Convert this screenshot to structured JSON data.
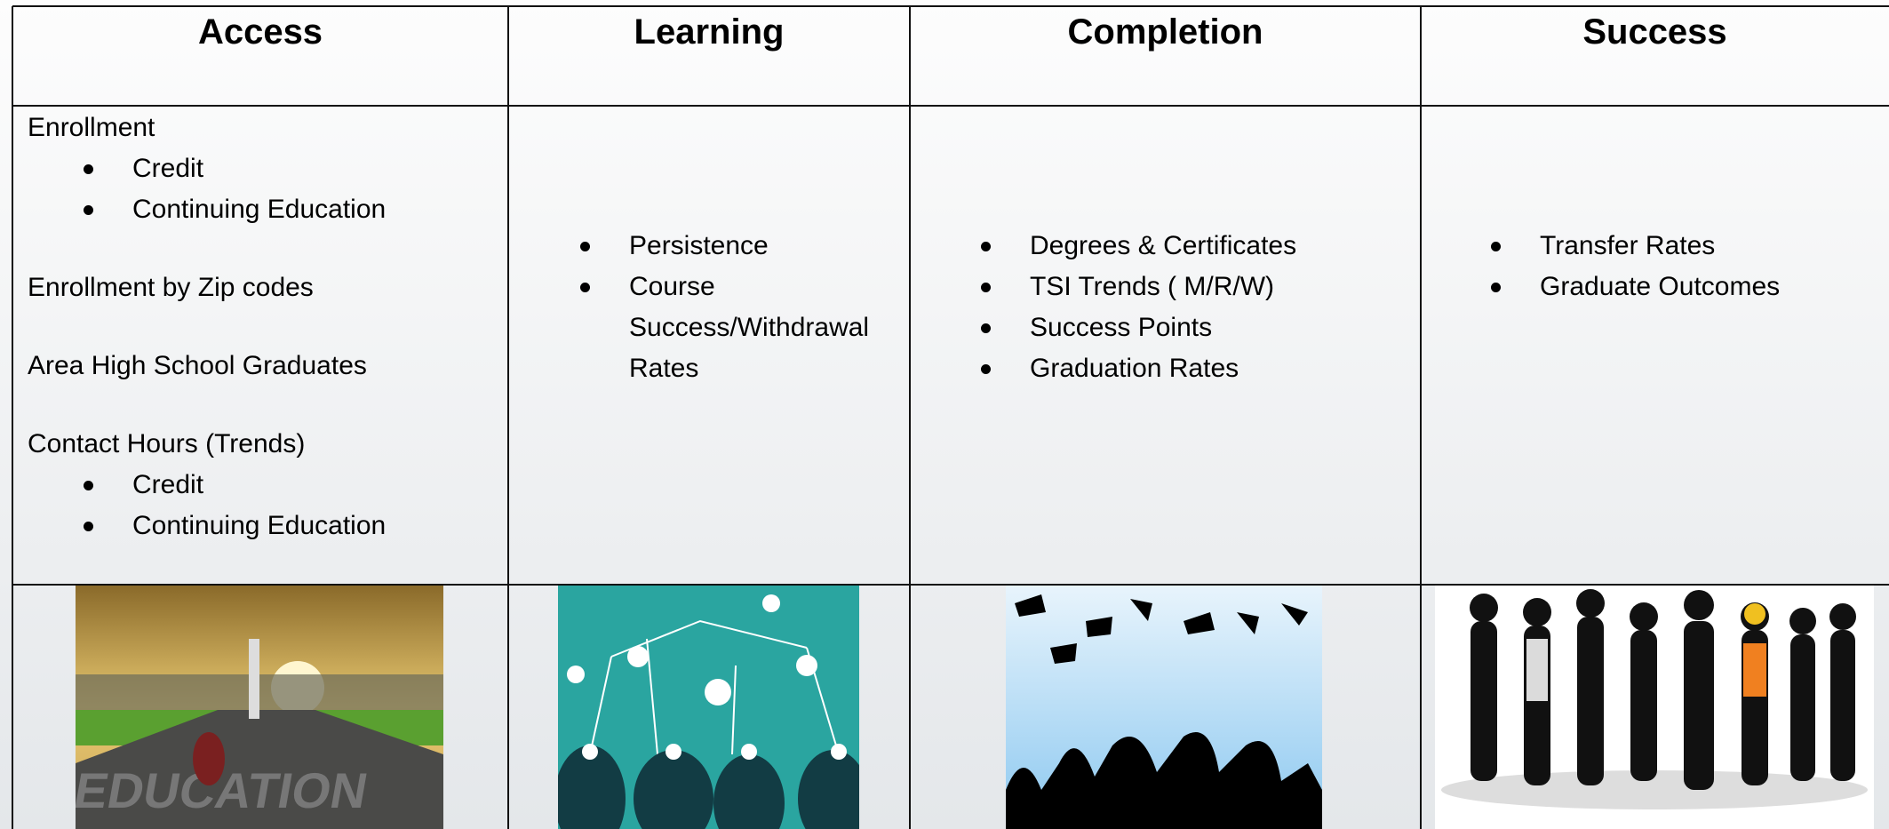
{
  "table": {
    "headers": [
      "Access",
      "Learning",
      "Completion",
      "Success"
    ],
    "access": [
      {
        "label": "Enrollment",
        "bullets": [
          "Credit",
          "Continuing Education"
        ]
      },
      {
        "label": "Enrollment by Zip codes"
      },
      {
        "label": "Area High School Graduates"
      },
      {
        "label": "Contact Hours (Trends)",
        "bullets": [
          "Credit",
          "Continuing Education"
        ]
      }
    ],
    "learning": [
      "Persistence",
      "Course Success/Withdrawal Rates"
    ],
    "completion": [
      "Degrees & Certificates",
      "TSI Trends ( M/R/W)",
      "Success Points",
      "Graduation Rates"
    ],
    "success": [
      "Transfer Rates",
      "Graduate Outcomes"
    ]
  }
}
